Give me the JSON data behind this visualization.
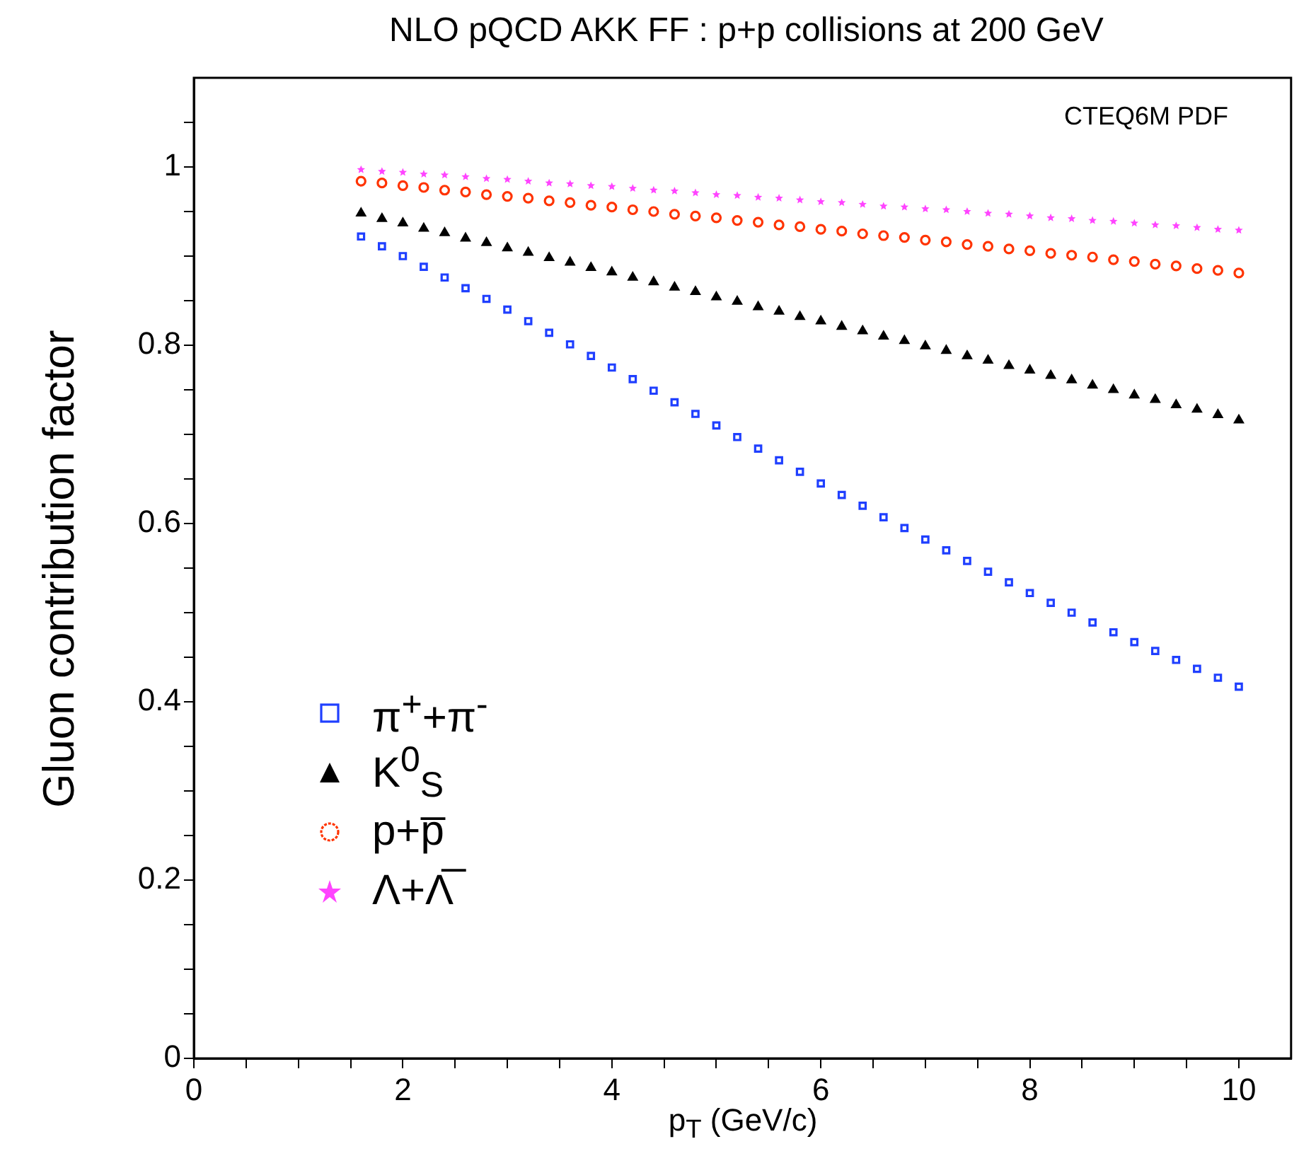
{
  "chart_data": {
    "type": "scatter",
    "title": "NLO pQCD AKK FF : p+p collisions at 200 GeV",
    "xlabel": "p$_{T}$  (GeV/c)",
    "ylabel": "Gluon contribution factor",
    "annotations": [
      "CTEQ6M PDF"
    ],
    "x": [
      1.6,
      1.8,
      2.0,
      2.2,
      2.4,
      2.6,
      2.8,
      3.0,
      3.2,
      3.4,
      3.6,
      3.8,
      4.0,
      4.2,
      4.4,
      4.6,
      4.8,
      5.0,
      5.2,
      5.4,
      5.6,
      5.8,
      6.0,
      6.2,
      6.4,
      6.6,
      6.8,
      7.0,
      7.2,
      7.4,
      7.6,
      7.8,
      8.0,
      8.2,
      8.4,
      8.6,
      8.8,
      9.0,
      9.2,
      9.4,
      9.6,
      9.8,
      10.0
    ],
    "series": [
      {
        "name": "π$^{+}$+π$^{-}$",
        "color": "#1f3fff",
        "marker": "square",
        "values": [
          0.922,
          0.911,
          0.9,
          0.888,
          0.876,
          0.864,
          0.852,
          0.84,
          0.827,
          0.814,
          0.801,
          0.788,
          0.775,
          0.762,
          0.749,
          0.736,
          0.723,
          0.71,
          0.697,
          0.684,
          0.671,
          0.658,
          0.645,
          0.632,
          0.62,
          0.607,
          0.595,
          0.582,
          0.57,
          0.558,
          0.546,
          0.534,
          0.522,
          0.511,
          0.5,
          0.489,
          0.478,
          0.467,
          0.457,
          0.447,
          0.437,
          0.427,
          0.417
        ]
      },
      {
        "name": "K$^{0}$$_{S}$",
        "color": "#000000",
        "marker": "triangle",
        "values": [
          0.948,
          0.942,
          0.937,
          0.931,
          0.926,
          0.92,
          0.915,
          0.909,
          0.904,
          0.898,
          0.893,
          0.887,
          0.882,
          0.876,
          0.871,
          0.865,
          0.86,
          0.854,
          0.849,
          0.843,
          0.838,
          0.832,
          0.827,
          0.821,
          0.816,
          0.81,
          0.805,
          0.799,
          0.794,
          0.788,
          0.783,
          0.777,
          0.772,
          0.766,
          0.761,
          0.755,
          0.75,
          0.744,
          0.739,
          0.733,
          0.728,
          0.722,
          0.716
        ]
      },
      {
        "name": "p+p̅",
        "color": "#ff3300",
        "marker": "circle",
        "values": [
          0.984,
          0.982,
          0.979,
          0.977,
          0.974,
          0.972,
          0.969,
          0.967,
          0.965,
          0.962,
          0.96,
          0.957,
          0.955,
          0.952,
          0.95,
          0.947,
          0.945,
          0.943,
          0.94,
          0.938,
          0.935,
          0.933,
          0.93,
          0.928,
          0.925,
          0.923,
          0.921,
          0.918,
          0.916,
          0.913,
          0.911,
          0.908,
          0.906,
          0.903,
          0.901,
          0.899,
          0.896,
          0.894,
          0.891,
          0.889,
          0.886,
          0.884,
          0.881
        ]
      },
      {
        "name": "Λ+Λ̅",
        "color": "#ff44ff",
        "marker": "star",
        "values": [
          0.997,
          0.995,
          0.994,
          0.992,
          0.991,
          0.989,
          0.987,
          0.986,
          0.984,
          0.982,
          0.981,
          0.979,
          0.978,
          0.976,
          0.974,
          0.973,
          0.971,
          0.969,
          0.968,
          0.966,
          0.965,
          0.963,
          0.961,
          0.96,
          0.958,
          0.956,
          0.955,
          0.953,
          0.952,
          0.95,
          0.948,
          0.947,
          0.945,
          0.943,
          0.942,
          0.94,
          0.939,
          0.937,
          0.935,
          0.934,
          0.932,
          0.93,
          0.929
        ]
      }
    ],
    "xlim": [
      0,
      10.5
    ],
    "xticks": [
      0,
      {
        "value": 0.5,
        "label": null
      },
      {
        "value": 1,
        "label": null
      },
      {
        "value": 1.5,
        "label": null
      },
      2,
      {
        "value": 2.5,
        "label": null
      },
      {
        "value": 3,
        "label": null
      },
      {
        "value": 3.5,
        "label": null
      },
      4,
      {
        "value": 4.5,
        "label": null
      },
      {
        "value": 5,
        "label": null
      },
      {
        "value": 5.5,
        "label": null
      },
      6,
      {
        "value": 6.5,
        "label": null
      },
      {
        "value": 7,
        "label": null
      },
      {
        "value": 7.5,
        "label": null
      },
      8,
      {
        "value": 8.5,
        "label": null
      },
      {
        "value": 9,
        "label": null
      },
      {
        "value": 9.5,
        "label": null
      },
      10
    ],
    "ylim": [
      0,
      1.1
    ],
    "yticks": [
      0,
      {
        "value": 0.05,
        "label": null
      },
      {
        "value": 0.1,
        "label": null
      },
      {
        "value": 0.15,
        "label": null
      },
      0.2,
      {
        "value": 0.25,
        "label": null
      },
      {
        "value": 0.3,
        "label": null
      },
      {
        "value": 0.35,
        "label": null
      },
      0.4,
      {
        "value": 0.45,
        "label": null
      },
      {
        "value": 0.5,
        "label": null
      },
      {
        "value": 0.55,
        "label": null
      },
      0.6,
      {
        "value": 0.65,
        "label": null
      },
      {
        "value": 0.7,
        "label": null
      },
      {
        "value": 0.75,
        "label": null
      },
      0.8,
      {
        "value": 0.85,
        "label": null
      },
      {
        "value": 0.9,
        "label": null
      },
      {
        "value": 0.95,
        "label": null
      },
      1,
      {
        "value": 1.05,
        "label": null
      }
    ],
    "grid": false,
    "legend": "bottom left"
  }
}
